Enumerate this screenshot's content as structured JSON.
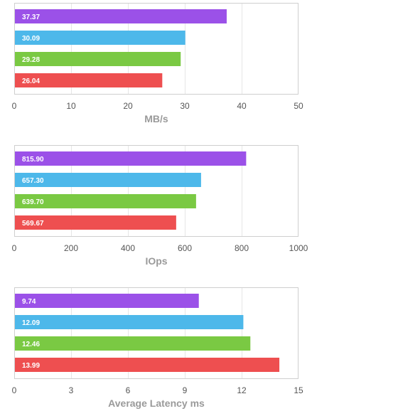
{
  "chart_data": [
    {
      "type": "bar",
      "orientation": "horizontal",
      "xlabel": "MB/s",
      "xlim": [
        0,
        50
      ],
      "ticks": [
        0,
        10,
        20,
        30,
        40,
        50
      ],
      "grid": true,
      "values": [
        37.37,
        30.09,
        29.28,
        26.04
      ],
      "labels": [
        "37.37",
        "30.09",
        "29.28",
        "26.04"
      ],
      "colors": [
        "#9b51e8",
        "#4db8ea",
        "#7ac943",
        "#ee4f50"
      ]
    },
    {
      "type": "bar",
      "orientation": "horizontal",
      "xlabel": "IOps",
      "xlim": [
        0,
        1000
      ],
      "ticks": [
        0,
        200,
        400,
        600,
        800,
        1000
      ],
      "grid": true,
      "values": [
        815.9,
        657.3,
        639.7,
        569.67
      ],
      "labels": [
        "815.90",
        "657.30",
        "639.70",
        "569.67"
      ],
      "colors": [
        "#9b51e8",
        "#4db8ea",
        "#7ac943",
        "#ee4f50"
      ]
    },
    {
      "type": "bar",
      "orientation": "horizontal",
      "xlabel": "Average Latency ms",
      "xlim": [
        0,
        15
      ],
      "ticks": [
        0,
        3,
        6,
        9,
        12,
        15
      ],
      "grid": true,
      "values": [
        9.74,
        12.09,
        12.46,
        13.99
      ],
      "labels": [
        "9.74",
        "12.09",
        "12.46",
        "13.99"
      ],
      "colors": [
        "#9b51e8",
        "#4db8ea",
        "#7ac943",
        "#ee4f50"
      ]
    }
  ]
}
